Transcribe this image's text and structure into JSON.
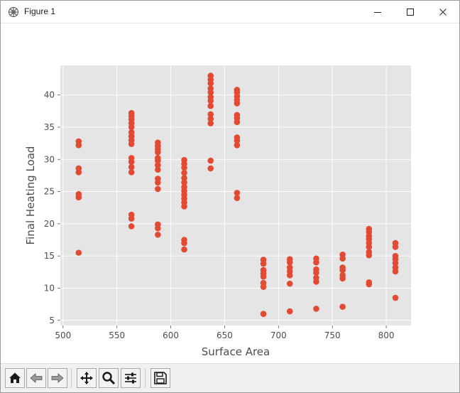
{
  "window": {
    "title": "Figure 1"
  },
  "icons": {
    "app": "matplotlib-figure-icon",
    "minimize": "minimize-icon",
    "maximize": "maximize-icon",
    "close": "close-icon"
  },
  "toolbar": {
    "buttons": [
      {
        "name": "home",
        "icon": "home-icon"
      },
      {
        "name": "back",
        "icon": "back-arrow-icon"
      },
      {
        "name": "forward",
        "icon": "forward-arrow-icon"
      },
      {
        "name": "pan",
        "icon": "pan-move-icon"
      },
      {
        "name": "zoom",
        "icon": "zoom-magnifier-icon"
      },
      {
        "name": "configure-subplots",
        "icon": "sliders-icon"
      },
      {
        "name": "save",
        "icon": "save-floppy-icon"
      }
    ]
  },
  "colors": {
    "point": "#E24A33",
    "axes_bg": "#E5E5E5",
    "grid": "#FFFFFF",
    "text": "#4D4D4D"
  },
  "chart_data": {
    "type": "scatter",
    "title": "",
    "xlabel": "Surface Area",
    "ylabel": "Final Heating Load",
    "xlim": [
      497.5,
      823
    ],
    "ylim": [
      4.2,
      44.6
    ],
    "xticks": [
      500,
      550,
      600,
      650,
      700,
      750,
      800
    ],
    "yticks": [
      5,
      10,
      15,
      20,
      25,
      30,
      35,
      40
    ],
    "grid": true,
    "legend": null,
    "series": [
      {
        "points": [
          [
            514.5,
            15.5
          ],
          [
            514.5,
            24.1
          ],
          [
            514.5,
            24.6
          ],
          [
            514.5,
            28.0
          ],
          [
            514.5,
            28.6
          ],
          [
            514.5,
            32.2
          ],
          [
            514.5,
            32.8
          ],
          [
            563.5,
            19.6
          ],
          [
            563.5,
            20.8
          ],
          [
            563.5,
            21.4
          ],
          [
            563.5,
            28.0
          ],
          [
            563.5,
            28.8
          ],
          [
            563.5,
            29.6
          ],
          [
            563.5,
            30.2
          ],
          [
            563.5,
            32.4
          ],
          [
            563.5,
            33.0
          ],
          [
            563.5,
            33.6
          ],
          [
            563.5,
            34.2
          ],
          [
            563.5,
            35.0
          ],
          [
            563.5,
            35.6
          ],
          [
            563.5,
            36.2
          ],
          [
            563.5,
            36.7
          ],
          [
            563.5,
            37.2
          ],
          [
            588.0,
            18.3
          ],
          [
            588.0,
            19.3
          ],
          [
            588.0,
            19.9
          ],
          [
            588.0,
            25.4
          ],
          [
            588.0,
            26.4
          ],
          [
            588.0,
            27.0
          ],
          [
            588.0,
            28.4
          ],
          [
            588.0,
            29.1
          ],
          [
            588.0,
            29.8
          ],
          [
            588.0,
            30.2
          ],
          [
            588.0,
            31.1
          ],
          [
            588.0,
            31.6
          ],
          [
            588.0,
            32.1
          ],
          [
            588.0,
            32.6
          ],
          [
            612.5,
            16.0
          ],
          [
            612.5,
            17.0
          ],
          [
            612.5,
            17.5
          ],
          [
            612.5,
            22.7
          ],
          [
            612.5,
            23.3
          ],
          [
            612.5,
            23.9
          ],
          [
            612.5,
            24.5
          ],
          [
            612.5,
            25.1
          ],
          [
            612.5,
            25.7
          ],
          [
            612.5,
            26.4
          ],
          [
            612.5,
            27.1
          ],
          [
            612.5,
            27.9
          ],
          [
            612.5,
            28.7
          ],
          [
            612.5,
            29.3
          ],
          [
            612.5,
            29.9
          ],
          [
            637.0,
            28.6
          ],
          [
            637.0,
            29.8
          ],
          [
            637.0,
            35.6
          ],
          [
            637.0,
            36.3
          ],
          [
            637.0,
            37.0
          ],
          [
            637.0,
            38.3
          ],
          [
            637.0,
            39.1
          ],
          [
            637.0,
            39.7
          ],
          [
            637.0,
            40.4
          ],
          [
            637.0,
            41.0
          ],
          [
            637.0,
            41.8
          ],
          [
            637.0,
            42.4
          ],
          [
            637.0,
            43.0
          ],
          [
            661.5,
            24.0
          ],
          [
            661.5,
            24.8
          ],
          [
            661.5,
            32.2
          ],
          [
            661.5,
            32.9
          ],
          [
            661.5,
            33.4
          ],
          [
            661.5,
            35.8
          ],
          [
            661.5,
            36.4
          ],
          [
            661.5,
            36.9
          ],
          [
            661.5,
            38.7
          ],
          [
            661.5,
            39.2
          ],
          [
            661.5,
            39.8
          ],
          [
            661.5,
            40.4
          ],
          [
            661.5,
            40.8
          ],
          [
            686.0,
            6.0
          ],
          [
            686.0,
            10.2
          ],
          [
            686.0,
            10.8
          ],
          [
            686.0,
            11.8
          ],
          [
            686.0,
            12.3
          ],
          [
            686.0,
            12.8
          ],
          [
            686.0,
            13.8
          ],
          [
            686.0,
            14.4
          ],
          [
            710.5,
            6.4
          ],
          [
            710.5,
            10.7
          ],
          [
            710.5,
            12.0
          ],
          [
            710.5,
            12.6
          ],
          [
            710.5,
            13.2
          ],
          [
            710.5,
            14.0
          ],
          [
            710.5,
            14.5
          ],
          [
            735.0,
            6.8
          ],
          [
            735.0,
            11.0
          ],
          [
            735.0,
            11.6
          ],
          [
            735.0,
            12.4
          ],
          [
            735.0,
            12.9
          ],
          [
            735.0,
            14.0
          ],
          [
            735.0,
            14.6
          ],
          [
            759.5,
            7.1
          ],
          [
            759.5,
            11.5
          ],
          [
            759.5,
            12.0
          ],
          [
            759.5,
            12.8
          ],
          [
            759.5,
            13.2
          ],
          [
            759.5,
            14.6
          ],
          [
            759.5,
            15.2
          ],
          [
            784.0,
            10.6
          ],
          [
            784.0,
            10.9
          ],
          [
            784.0,
            15.1
          ],
          [
            784.0,
            15.6
          ],
          [
            784.0,
            16.4
          ],
          [
            784.0,
            17.0
          ],
          [
            784.0,
            17.6
          ],
          [
            784.0,
            18.1
          ],
          [
            784.0,
            18.7
          ],
          [
            784.0,
            19.2
          ],
          [
            808.5,
            8.5
          ],
          [
            808.5,
            12.6
          ],
          [
            808.5,
            13.2
          ],
          [
            808.5,
            13.9
          ],
          [
            808.5,
            14.5
          ],
          [
            808.5,
            15.0
          ],
          [
            808.5,
            16.4
          ],
          [
            808.5,
            17.0
          ]
        ]
      }
    ]
  }
}
